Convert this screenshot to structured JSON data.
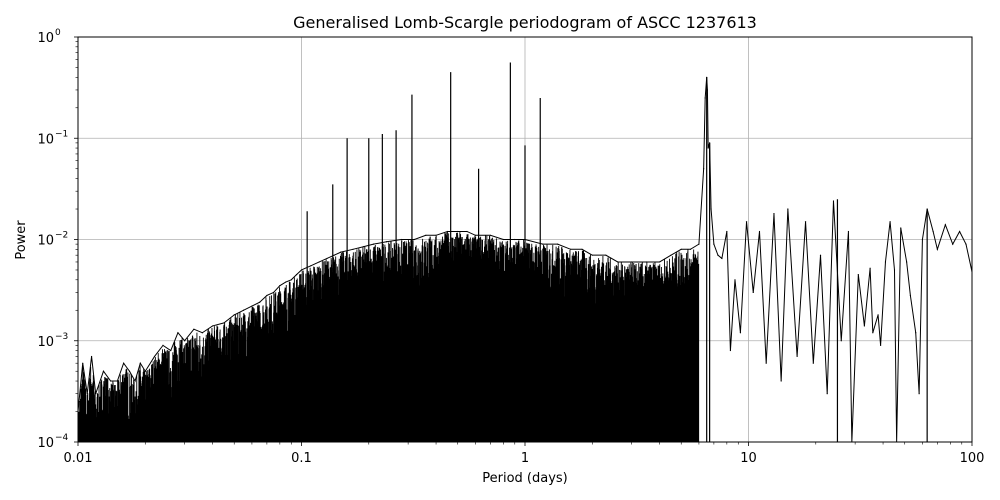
{
  "chart_data": {
    "type": "line",
    "title": "Generalised Lomb-Scargle periodogram of ASCC 1237613",
    "xlabel": "Period (days)",
    "ylabel": "Power",
    "xscale": "log",
    "yscale": "log",
    "xlim": [
      0.01,
      100
    ],
    "ylim": [
      0.0001,
      1
    ],
    "grid": true,
    "line_color": "#000000",
    "x_ticks": [
      {
        "value": 0.01,
        "label": "0.01"
      },
      {
        "value": 0.1,
        "label": "0.1"
      },
      {
        "value": 1,
        "label": "1"
      },
      {
        "value": 10,
        "label": "10"
      },
      {
        "value": 100,
        "label": "100"
      }
    ],
    "y_ticks": [
      {
        "value": 0.0001,
        "base": "10",
        "exp": "−4"
      },
      {
        "value": 0.001,
        "base": "10",
        "exp": "−3"
      },
      {
        "value": 0.01,
        "base": "10",
        "exp": "−2"
      },
      {
        "value": 0.1,
        "base": "10",
        "exp": "−1"
      },
      {
        "value": 1,
        "base": "10",
        "exp": "0"
      }
    ],
    "peaks": [
      {
        "x": 0.106,
        "y": 0.019
      },
      {
        "x": 0.138,
        "y": 0.035
      },
      {
        "x": 0.16,
        "y": 0.1
      },
      {
        "x": 0.2,
        "y": 0.1
      },
      {
        "x": 0.23,
        "y": 0.11
      },
      {
        "x": 0.265,
        "y": 0.12
      },
      {
        "x": 0.312,
        "y": 0.27
      },
      {
        "x": 0.465,
        "y": 0.45
      },
      {
        "x": 0.62,
        "y": 0.05
      },
      {
        "x": 0.86,
        "y": 0.56
      },
      {
        "x": 1.0,
        "y": 0.085
      },
      {
        "x": 1.17,
        "y": 0.25
      },
      {
        "x": 6.5,
        "y": 0.4
      },
      {
        "x": 6.7,
        "y": 0.09
      },
      {
        "x": 25,
        "y": 0.025
      },
      {
        "x": 63,
        "y": 0.02
      }
    ],
    "series": [
      {
        "values": [
          [
            0.01,
            0.0002
          ],
          [
            0.0105,
            0.0006
          ],
          [
            0.011,
            0.0003
          ],
          [
            0.0115,
            0.0007
          ],
          [
            0.012,
            0.0003
          ],
          [
            0.013,
            0.0005
          ],
          [
            0.014,
            0.0004
          ],
          [
            0.015,
            0.0004
          ],
          [
            0.016,
            0.0006
          ],
          [
            0.017,
            0.0005
          ],
          [
            0.018,
            0.0004
          ],
          [
            0.019,
            0.0006
          ],
          [
            0.02,
            0.0005
          ],
          [
            0.022,
            0.0007
          ],
          [
            0.024,
            0.0009
          ],
          [
            0.026,
            0.0008
          ],
          [
            0.028,
            0.0012
          ],
          [
            0.03,
            0.001
          ],
          [
            0.033,
            0.0013
          ],
          [
            0.036,
            0.0012
          ],
          [
            0.04,
            0.0014
          ],
          [
            0.045,
            0.0015
          ],
          [
            0.05,
            0.0018
          ],
          [
            0.055,
            0.002
          ],
          [
            0.06,
            0.0022
          ],
          [
            0.065,
            0.0024
          ],
          [
            0.07,
            0.0028
          ],
          [
            0.075,
            0.003
          ],
          [
            0.08,
            0.0035
          ],
          [
            0.085,
            0.0038
          ],
          [
            0.09,
            0.004
          ],
          [
            0.095,
            0.0045
          ],
          [
            0.1,
            0.005
          ],
          [
            0.11,
            0.0055
          ],
          [
            0.12,
            0.006
          ],
          [
            0.13,
            0.0065
          ],
          [
            0.14,
            0.007
          ],
          [
            0.15,
            0.0075
          ],
          [
            0.17,
            0.008
          ],
          [
            0.19,
            0.0085
          ],
          [
            0.21,
            0.009
          ],
          [
            0.24,
            0.0095
          ],
          [
            0.28,
            0.01
          ],
          [
            0.32,
            0.01
          ],
          [
            0.36,
            0.011
          ],
          [
            0.4,
            0.011
          ],
          [
            0.45,
            0.012
          ],
          [
            0.5,
            0.012
          ],
          [
            0.55,
            0.012
          ],
          [
            0.6,
            0.011
          ],
          [
            0.7,
            0.011
          ],
          [
            0.8,
            0.01
          ],
          [
            0.9,
            0.01
          ],
          [
            1.0,
            0.01
          ],
          [
            1.2,
            0.009
          ],
          [
            1.4,
            0.009
          ],
          [
            1.6,
            0.008
          ],
          [
            1.8,
            0.008
          ],
          [
            2.0,
            0.007
          ],
          [
            2.3,
            0.007
          ],
          [
            2.6,
            0.006
          ],
          [
            3.0,
            0.006
          ],
          [
            3.5,
            0.006
          ],
          [
            4.0,
            0.006
          ],
          [
            4.5,
            0.007
          ],
          [
            5.0,
            0.008
          ],
          [
            5.5,
            0.008
          ],
          [
            6.0,
            0.009
          ],
          [
            6.3,
            0.05
          ],
          [
            6.4,
            0.25
          ],
          [
            6.5,
            0.4
          ],
          [
            6.55,
            0.3
          ],
          [
            6.6,
            0.08
          ],
          [
            6.7,
            0.09
          ],
          [
            6.8,
            0.02
          ],
          [
            7.0,
            0.009
          ],
          [
            7.3,
            0.007
          ],
          [
            7.6,
            0.0065
          ],
          [
            8.0,
            0.012
          ],
          [
            8.3,
            0.0008
          ],
          [
            8.7,
            0.004
          ],
          [
            9.2,
            0.0012
          ],
          [
            9.8,
            0.015
          ],
          [
            10.5,
            0.003
          ],
          [
            11.2,
            0.012
          ],
          [
            12,
            0.0006
          ],
          [
            13,
            0.018
          ],
          [
            14,
            0.0004
          ],
          [
            15,
            0.02
          ],
          [
            16.5,
            0.0007
          ],
          [
            18,
            0.015
          ],
          [
            19.5,
            0.0006
          ],
          [
            21,
            0.007
          ],
          [
            22.5,
            0.0003
          ],
          [
            24,
            0.024
          ],
          [
            26,
            0.001
          ],
          [
            28,
            0.012
          ],
          [
            29,
            0.0001
          ],
          [
            31,
            0.0045
          ],
          [
            33,
            0.0014
          ],
          [
            35,
            0.0052
          ],
          [
            36,
            0.0012
          ],
          [
            38,
            0.0018
          ],
          [
            39,
            0.0009
          ],
          [
            41,
            0.006
          ],
          [
            43,
            0.015
          ],
          [
            45,
            0.005
          ],
          [
            46,
            0.0001
          ],
          [
            48,
            0.013
          ],
          [
            51,
            0.006
          ],
          [
            53,
            0.0028
          ],
          [
            56,
            0.0012
          ],
          [
            58,
            0.0003
          ],
          [
            60,
            0.01
          ],
          [
            63,
            0.02
          ],
          [
            67,
            0.012
          ],
          [
            70,
            0.008
          ],
          [
            76,
            0.014
          ],
          [
            82,
            0.009
          ],
          [
            88,
            0.012
          ],
          [
            94,
            0.009
          ],
          [
            100,
            0.0048
          ]
        ]
      }
    ]
  }
}
